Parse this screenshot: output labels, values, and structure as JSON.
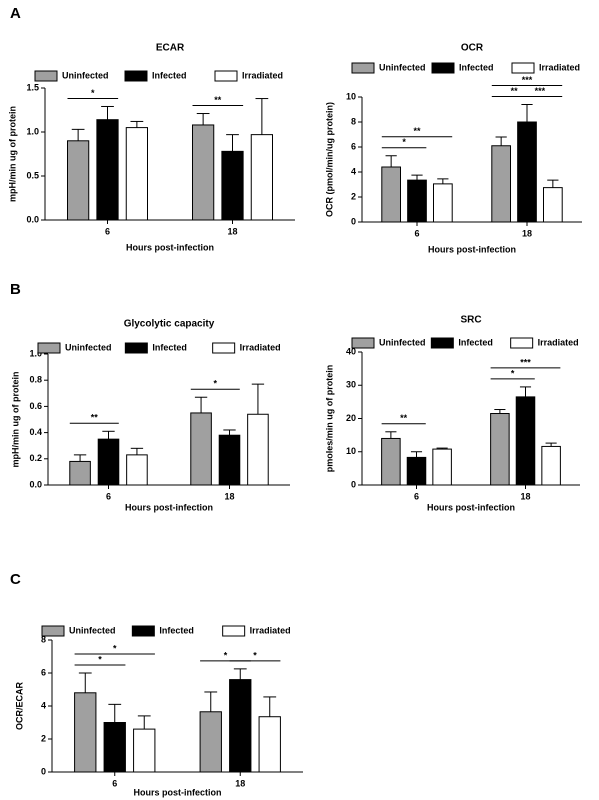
{
  "chart_data": [
    {
      "type": "bar",
      "panel_label": "A",
      "title": "ECAR",
      "xlabel": "Hours post-infection",
      "ylabel": "mpH/min ug of protein",
      "categories": [
        "6",
        "18"
      ],
      "series": [
        {
          "name": "Uninfected",
          "color": "#a0a0a0",
          "values": [
            0.9,
            1.08
          ],
          "errors": [
            0.13,
            0.13
          ]
        },
        {
          "name": "Infected",
          "color": "#000000",
          "values": [
            1.14,
            0.78
          ],
          "errors": [
            0.15,
            0.19
          ]
        },
        {
          "name": "Irradiated",
          "color": "#ffffff",
          "values": [
            1.05,
            0.97
          ],
          "errors": [
            0.07,
            0.41
          ]
        }
      ],
      "ylim": [
        0,
        1.5
      ],
      "yticks": [
        {
          "value": 0,
          "label": "0.0"
        },
        0.5,
        {
          "value": 1,
          "label": "1.0"
        },
        1.5
      ],
      "annotations": [
        {
          "text": "*",
          "category": 0,
          "between": [
            0,
            1
          ]
        },
        {
          "text": "**",
          "category": 1,
          "between": [
            0,
            1
          ]
        }
      ]
    },
    {
      "type": "bar",
      "title": "OCR",
      "xlabel": "Hours post-infection",
      "ylabel": "OCR (pmol/min/ug protein)",
      "categories": [
        "6",
        "18"
      ],
      "series": [
        {
          "name": "Uninfected",
          "color": "#a0a0a0",
          "values": [
            4.4,
            6.1
          ],
          "errors": [
            0.9,
            0.7
          ]
        },
        {
          "name": "Infected",
          "color": "#000000",
          "values": [
            3.35,
            8.0
          ],
          "errors": [
            0.4,
            1.4
          ]
        },
        {
          "name": "Irradiated",
          "color": "#ffffff",
          "values": [
            3.05,
            2.75
          ],
          "errors": [
            0.4,
            0.6
          ]
        }
      ],
      "ylim": [
        0,
        10
      ],
      "yticks": [
        0,
        2,
        4,
        6,
        8,
        10
      ],
      "annotations": [
        {
          "text": "*",
          "category": 0,
          "between": [
            0,
            1
          ]
        },
        {
          "text": "**",
          "category": 0,
          "between": [
            0,
            2
          ]
        },
        {
          "text": "**",
          "category": 1,
          "between": [
            0,
            1
          ]
        },
        {
          "text": "***",
          "category": 1,
          "between": [
            1,
            2
          ]
        },
        {
          "text": "***",
          "category": 1,
          "between": [
            0,
            2
          ]
        }
      ]
    },
    {
      "type": "bar",
      "panel_label": "B",
      "title": "Glycolytic capacity",
      "xlabel": "Hours post-infection",
      "ylabel": "mpH/min ug of protein",
      "categories": [
        "6",
        "18"
      ],
      "series": [
        {
          "name": "Uninfected",
          "color": "#a0a0a0",
          "values": [
            0.18,
            0.55
          ],
          "errors": [
            0.05,
            0.12
          ]
        },
        {
          "name": "Infected",
          "color": "#000000",
          "values": [
            0.35,
            0.38
          ],
          "errors": [
            0.06,
            0.04
          ]
        },
        {
          "name": "Irradiated",
          "color": "#ffffff",
          "values": [
            0.23,
            0.54
          ],
          "errors": [
            0.05,
            0.23
          ]
        }
      ],
      "ylim": [
        0,
        1
      ],
      "yticks": [
        {
          "value": 0,
          "label": "0.0"
        },
        0.2,
        0.4,
        0.6,
        0.8,
        {
          "value": 1,
          "label": "1.0"
        }
      ],
      "annotations": [
        {
          "text": "**",
          "category": 0,
          "between": [
            0,
            1
          ]
        },
        {
          "text": "*",
          "category": 1,
          "between": [
            0,
            1
          ]
        }
      ]
    },
    {
      "type": "bar",
      "title": "SRC",
      "xlabel": "Hours post-infection",
      "ylabel": "pmoles/min ug of protein",
      "categories": [
        "6",
        "18"
      ],
      "series": [
        {
          "name": "Uninfected",
          "color": "#a0a0a0",
          "values": [
            14,
            21.5
          ],
          "errors": [
            2,
            1.2
          ]
        },
        {
          "name": "Infected",
          "color": "#000000",
          "values": [
            8.3,
            26.5
          ],
          "errors": [
            1.7,
            3
          ]
        },
        {
          "name": "Irradiated",
          "color": "#ffffff",
          "values": [
            10.8,
            11.6
          ],
          "errors": [
            0.3,
            1
          ]
        }
      ],
      "ylim": [
        0,
        40
      ],
      "yticks": [
        0,
        10,
        20,
        30,
        40
      ],
      "annotations": [
        {
          "text": "**",
          "category": 0,
          "between": [
            0,
            1
          ]
        },
        {
          "text": "*",
          "category": 1,
          "between": [
            0,
            1
          ]
        },
        {
          "text": "***",
          "category": 1,
          "between": [
            0,
            2
          ]
        }
      ]
    },
    {
      "type": "bar",
      "panel_label": "C",
      "xlabel": "Hours post-infection",
      "ylabel": "OCR/ECAR",
      "categories": [
        "6",
        "18"
      ],
      "series": [
        {
          "name": "Uninfected",
          "color": "#a0a0a0",
          "values": [
            4.8,
            3.65
          ],
          "errors": [
            1.2,
            1.2
          ]
        },
        {
          "name": "Infected",
          "color": "#000000",
          "values": [
            3.0,
            5.6
          ],
          "errors": [
            1.1,
            0.65
          ]
        },
        {
          "name": "Irradiated",
          "color": "#ffffff",
          "values": [
            2.6,
            3.35
          ],
          "errors": [
            0.8,
            1.2
          ]
        }
      ],
      "ylim": [
        0,
        8
      ],
      "yticks": [
        0,
        2,
        4,
        6,
        8
      ],
      "annotations": [
        {
          "text": "*",
          "category": 0,
          "between": [
            0,
            1
          ]
        },
        {
          "text": "*",
          "category": 0,
          "between": [
            0,
            2
          ]
        },
        {
          "text": "*",
          "category": 1,
          "between": [
            0,
            1
          ]
        },
        {
          "text": "*",
          "category": 1,
          "between": [
            1,
            2
          ]
        }
      ]
    }
  ]
}
